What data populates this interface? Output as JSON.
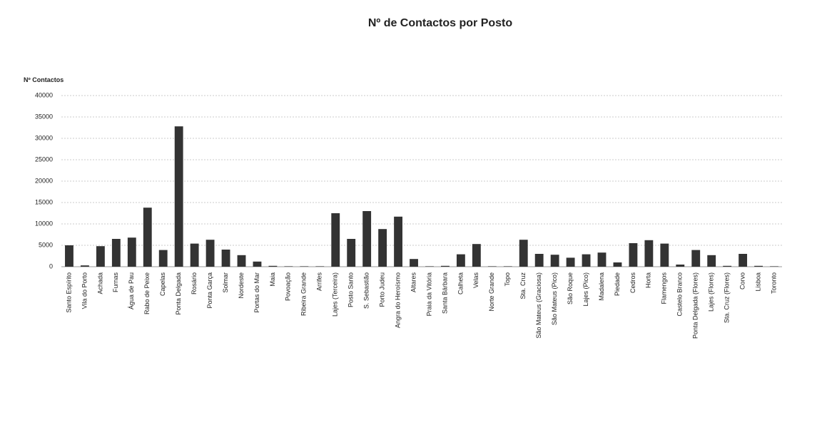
{
  "chart_data": {
    "type": "bar",
    "title": "Nº de Contactos por Posto",
    "y_label": "Nº Contactos",
    "categories": [
      "Santo Espírito",
      "Vila do Porto",
      "Achada",
      "Furnas",
      "Água de Pau",
      "Rabo de Peixe",
      "Capelas",
      "Ponta Delgada",
      "Rosário",
      "Ponta Garça",
      "Solmar",
      "Nordeste",
      "Portas do Mar",
      "Maia",
      "Povoação",
      "Ribeira Grande",
      "Arrifes",
      "Lajes (Terceira)",
      "Posto Santo",
      "S. Sebastião",
      "Porto Judeu",
      "Angra do Heroísmo",
      "Altares",
      "Praia da Vitória",
      "Santa Bárbara",
      "Calheta",
      "Velas",
      "Norte Grande",
      "Topo",
      "Sta. Cruz",
      "São Mateus (Graciosa)",
      "São Mateus (Pico)",
      "São Roque",
      "Lajes (Pico)",
      "Madalena",
      "Piedade",
      "Cedros",
      "Horta",
      "Flamengos",
      "Castelo Branco",
      "Ponta Delgada (Flores)",
      "Lajes (Flores)",
      "Sta. Cruz (Flores)",
      "Corvo",
      "Lisboa",
      "Toronto"
    ],
    "values": [
      5000,
      300,
      4800,
      6500,
      6800,
      13800,
      3900,
      32800,
      5400,
      6300,
      4000,
      2700,
      1200,
      200,
      100,
      100,
      100,
      12500,
      6500,
      13000,
      8800,
      11700,
      1800,
      100,
      200,
      2900,
      5300,
      100,
      100,
      6300,
      3000,
      2800,
      2100,
      2900,
      3300,
      1000,
      5500,
      6200,
      5400,
      500,
      3900,
      2700,
      200,
      3000,
      200,
      100
    ],
    "color": "#333333",
    "ylim": [
      0,
      40000
    ],
    "yticks": [
      0,
      5000,
      10000,
      15000,
      20000,
      25000,
      30000,
      35000,
      40000
    ],
    "grid": true
  }
}
